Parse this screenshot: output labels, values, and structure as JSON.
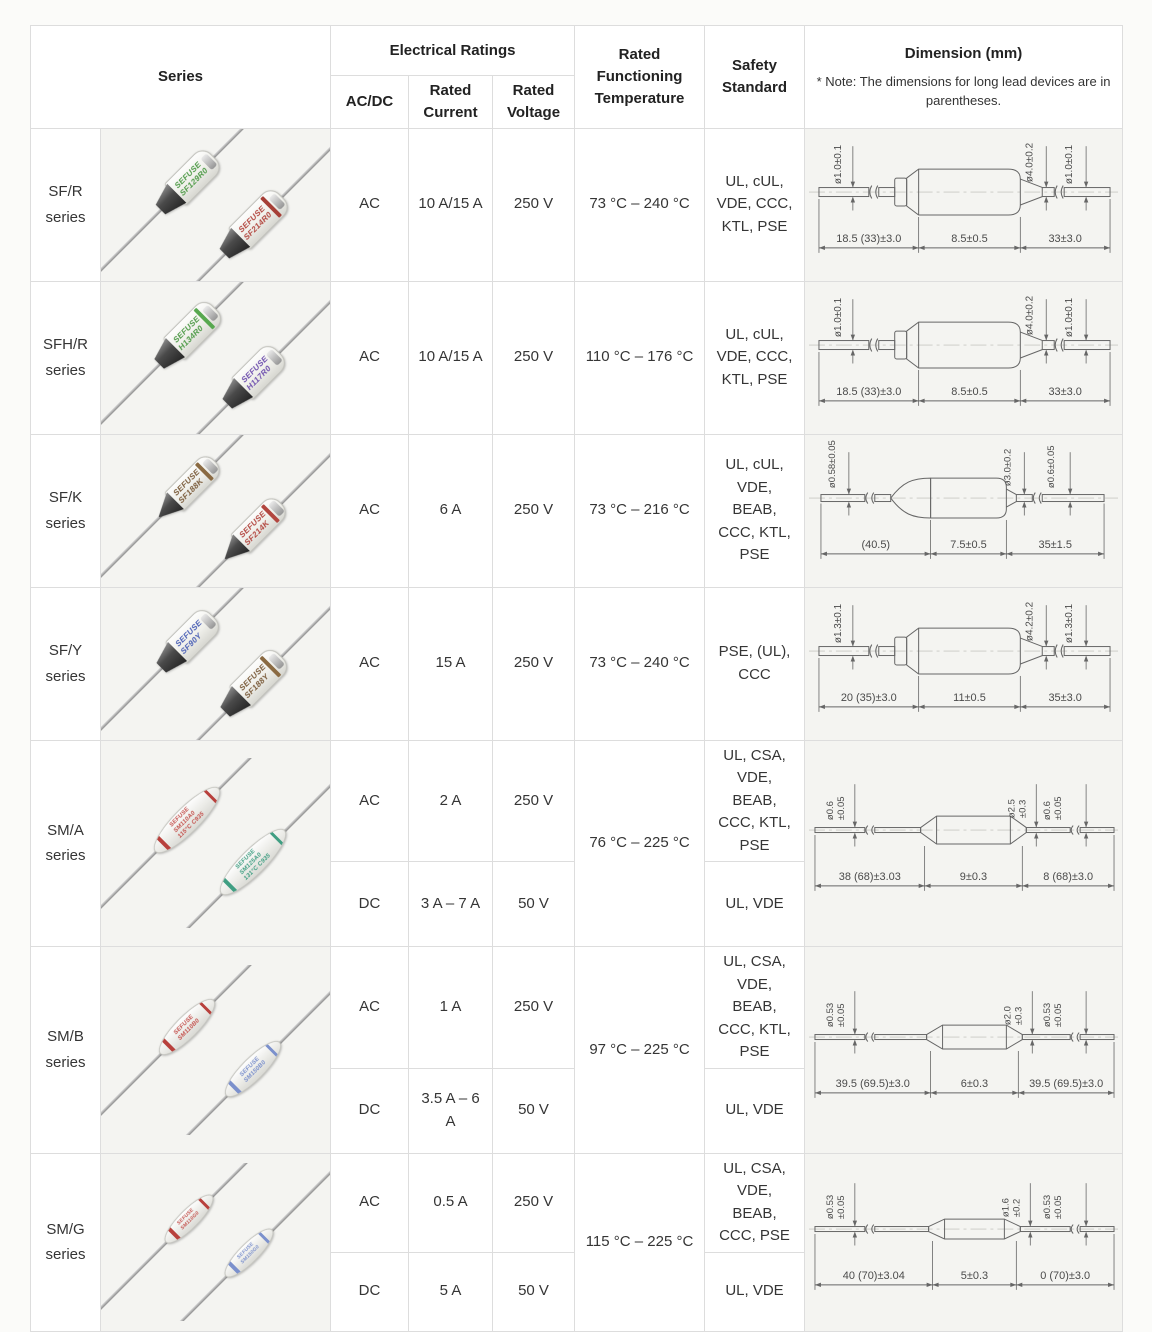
{
  "table": {
    "header": {
      "series": "Series",
      "electrical_ratings": "Electrical Ratings",
      "ac_dc": "AC/DC",
      "rated_current": "Rated Current",
      "rated_voltage": "Rated Voltage",
      "rated_functioning_temperature": "Rated Functioning Temperature",
      "safety_standard": "Safety Standard",
      "dimension": "Dimension (mm)",
      "dimension_note": "* Note: The dimensions for long lead devices are in parentheses."
    },
    "series_suffix": "series",
    "rows": [
      {
        "series": "SF/R",
        "photo": {
          "style": "sf",
          "fuses": [
            {
              "lines": [
                "SEFUSE",
                "SF129R0"
              ],
              "color": "#4e9a47",
              "band": ""
            },
            {
              "lines": [
                "SEFUSE",
                "SF214R0"
              ],
              "color": "#b2463f",
              "band": "#a63f37"
            }
          ]
        },
        "ratings": [
          {
            "acdc": "AC",
            "current": "10 A/15 A",
            "voltage": "250 V"
          }
        ],
        "temperature": "73 °C – 240 °C",
        "safety": [
          "UL, cUL, VDE, CCC, KTL, PSE"
        ],
        "diagram": {
          "shape": "sfr",
          "left_dia": "ø1.0±0.1",
          "body_dia": "ø4.0±0.2",
          "right_dia": "ø1.0±0.1",
          "left_len": "18.5 (33)±3.0",
          "body_len": "8.5±0.5",
          "right_len": "33±3.0"
        }
      },
      {
        "series": "SFH/R",
        "photo": {
          "style": "sf",
          "fuses": [
            {
              "lines": [
                "SEFUSE",
                "H134R0"
              ],
              "color": "#4e9a47",
              "band": "#57a84f"
            },
            {
              "lines": [
                "SEFUSE",
                "H117R0"
              ],
              "color": "#6e4fae",
              "band": ""
            }
          ]
        },
        "ratings": [
          {
            "acdc": "AC",
            "current": "10 A/15 A",
            "voltage": "250 V"
          }
        ],
        "temperature": "110 °C – 176 °C",
        "safety": [
          "UL, cUL, VDE, CCC, KTL, PSE"
        ],
        "diagram": {
          "shape": "sfr",
          "left_dia": "ø1.0±0.1",
          "body_dia": "ø4.0±0.2",
          "right_dia": "ø1.0±0.1",
          "left_len": "18.5 (33)±3.0",
          "body_len": "8.5±0.5",
          "right_len": "33±3.0"
        }
      },
      {
        "series": "SF/K",
        "photo": {
          "style": "sfk",
          "fuses": [
            {
              "lines": [
                "SEFUSE",
                "SF188K"
              ],
              "color": "#7a5b3a",
              "band": "#8a6a42"
            },
            {
              "lines": [
                "SEFUSE",
                "SF214K"
              ],
              "color": "#b2463f",
              "band": "#b2463f"
            }
          ]
        },
        "ratings": [
          {
            "acdc": "AC",
            "current": "6 A",
            "voltage": "250 V"
          }
        ],
        "temperature": "73 °C – 216 °C",
        "safety": [
          "UL, cUL, VDE, BEAB, CCC, KTL, PSE"
        ],
        "diagram": {
          "shape": "sfk",
          "left_dia": "ø0.58±0.05",
          "body_dia": "ø3.0±0.2",
          "right_dia": "ø0.6±0.05",
          "left_len": "(40.5)",
          "body_len": "7.5±0.5",
          "right_len": "35±1.5"
        }
      },
      {
        "series": "SF/Y",
        "photo": {
          "style": "sf",
          "fuses": [
            {
              "lines": [
                "SEFUSE",
                "SF90Y"
              ],
              "color": "#4a5fb5",
              "band": ""
            },
            {
              "lines": [
                "SEFUSE",
                "SF188Y"
              ],
              "color": "#7a5b3a",
              "band": "#8a6a42"
            }
          ]
        },
        "ratings": [
          {
            "acdc": "AC",
            "current": "15 A",
            "voltage": "250 V"
          }
        ],
        "temperature": "73 °C – 240 °C",
        "safety": [
          "PSE, (UL), CCC"
        ],
        "diagram": {
          "shape": "sfr",
          "left_dia": "ø1.3±0.1",
          "body_dia": "ø4.2±0.2",
          "right_dia": "ø1.3±0.1",
          "left_len": "20 (35)±3.0",
          "body_len": "11±0.5",
          "right_len": "35±3.0"
        }
      },
      {
        "series": "SM/A",
        "photo": {
          "style": "sm",
          "fuses": [
            {
              "lines": [
                "SEFUSE",
                "SM110A0",
                "115°C C935"
              ],
              "color": "#c4524e",
              "band": "#b8403c"
            },
            {
              "lines": [
                "SEFUSE",
                "SM125A0",
                "131°C C935"
              ],
              "color": "#3f9e82",
              "band": "#3f9e82"
            }
          ]
        },
        "ratings": [
          {
            "acdc": "AC",
            "current": "2 A",
            "voltage": "250 V"
          },
          {
            "acdc": "DC",
            "current": "3 A – 7 A",
            "voltage": "50 V"
          }
        ],
        "temperature": "76 °C – 225 °C",
        "safety": [
          "UL, CSA, VDE, BEAB, CCC, KTL, PSE",
          "UL, VDE"
        ],
        "diagram": {
          "shape": "sma",
          "left_dia": "ø0.6 ±0.05",
          "body_dia": "ø2.5 ±0.3",
          "right_dia": "ø0.6 ±0.05",
          "left_len": "38 (68)±3.03",
          "body_len": "9±0.3",
          "right_len": "8 (68)±3.0"
        }
      },
      {
        "series": "SM/B",
        "photo": {
          "style": "smb",
          "fuses": [
            {
              "lines": [
                "SEFUSE",
                "SM110B0"
              ],
              "color": "#c4524e",
              "band": "#b8403c"
            },
            {
              "lines": [
                "SEFUSE",
                "SM150B0"
              ],
              "color": "#7b90cc",
              "band": "#7b90cc"
            }
          ]
        },
        "ratings": [
          {
            "acdc": "AC",
            "current": "1 A",
            "voltage": "250 V"
          },
          {
            "acdc": "DC",
            "current": "3.5 A – 6 A",
            "voltage": "50 V"
          }
        ],
        "temperature": "97 °C – 225 °C",
        "safety": [
          "UL, CSA, VDE, BEAB, CCC, KTL, PSE",
          "UL, VDE"
        ],
        "diagram": {
          "shape": "smb",
          "left_dia": "ø0.53 ±0.05",
          "body_dia": "ø2.0 ±0.3",
          "right_dia": "ø0.53 ±0.05",
          "left_len": "39.5 (69.5)±3.0",
          "body_len": "6±0.3",
          "right_len": "39.5 (69.5)±3.0"
        }
      },
      {
        "series": "SM/G",
        "photo": {
          "style": "smg",
          "fuses": [
            {
              "lines": [
                "SEFUSE",
                "SM110G0"
              ],
              "color": "#c4524e",
              "band": "#b8403c"
            },
            {
              "lines": [
                "SEFUSE",
                "SM150G0"
              ],
              "color": "#7b90cc",
              "band": "#7b90cc"
            }
          ]
        },
        "ratings": [
          {
            "acdc": "AC",
            "current": "0.5 A",
            "voltage": "250 V"
          },
          {
            "acdc": "DC",
            "current": "5 A",
            "voltage": "50 V"
          }
        ],
        "temperature": "115 °C – 225 °C",
        "safety": [
          "UL, CSA, VDE, BEAB, CCC, PSE",
          "UL, VDE"
        ],
        "diagram": {
          "shape": "smg",
          "left_dia": "ø0.53 ±0.05",
          "body_dia": "ø1.6 ±0.2",
          "right_dia": "ø0.53 ±0.05",
          "left_len": "40 (70)±3.04",
          "body_len": "5±0.3",
          "right_len": "0 (70)±3.0"
        }
      }
    ]
  }
}
